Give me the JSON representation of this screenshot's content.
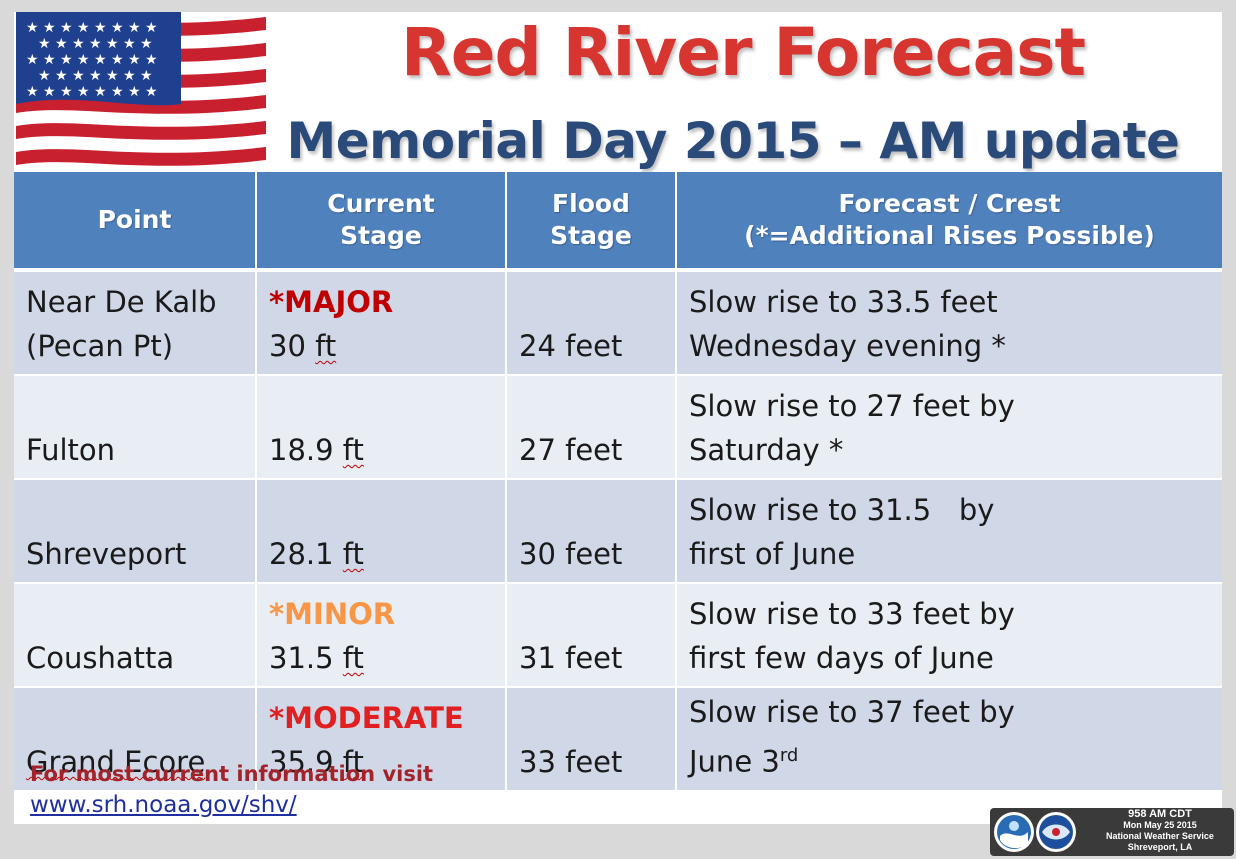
{
  "title": "Red River Forecast",
  "subtitle": "Memorial Day 2015 – AM update",
  "colors": {
    "header_bg": "#4f81bd",
    "row_dark": "#d0d8e8",
    "row_light": "#e9edf4",
    "major": "#c00000",
    "minor": "#f79646",
    "moderate": "#e02020",
    "title_red": "#d7352f",
    "subtitle_blue": "#2a4a7a"
  },
  "table": {
    "headers": {
      "point": "Point",
      "current_1": "Current",
      "current_2": "Stage",
      "flood_1": "Flood",
      "flood_2": "Stage",
      "forecast_1": "Forecast / Crest",
      "forecast_2": "(*=Additional Rises Possible)"
    },
    "rows": [
      {
        "point_1": "Near De Kalb",
        "point_2": "(Pecan Pt)",
        "category": "*MAJOR",
        "stage_num": "30",
        "stage_unit": "ft",
        "flood": "24 feet",
        "forecast_1": "Slow rise to 33.5 feet",
        "forecast_2": "Wednesday evening  *"
      },
      {
        "point_1": "Fulton",
        "category": "",
        "stage_num": "18.9",
        "stage_unit": "ft",
        "flood": "27 feet",
        "forecast_1": "Slow rise to 27 feet by",
        "forecast_2": "Saturday *"
      },
      {
        "point_1": "Shreveport",
        "category": "",
        "stage_num": "28.1",
        "stage_unit": "ft",
        "flood": "30 feet",
        "forecast_1": "Slow rise to 31.5   by",
        "forecast_2": "first of June"
      },
      {
        "point_1": "Coushatta",
        "category": "*MINOR",
        "stage_num": "31.5",
        "stage_unit": "ft",
        "flood": "31 feet",
        "forecast_1": "Slow rise to 33 feet by",
        "forecast_2": "first few days of June"
      },
      {
        "point_1": "Grand Ecore",
        "category": "*MODERATE",
        "stage_num": "35.9",
        "stage_unit": "ft",
        "flood": "33 feet",
        "forecast_1": "Slow rise to 37 feet by",
        "forecast_2": "June 3",
        "forecast_sup": "rd"
      }
    ]
  },
  "footer": {
    "info": "For most current information visit",
    "link": "www.srh.noaa.gov/shv/"
  },
  "stamp": {
    "time": "958 AM CDT",
    "date": "Mon May 25 2015",
    "office": "National Weather Service",
    "location": "Shreveport, LA"
  }
}
